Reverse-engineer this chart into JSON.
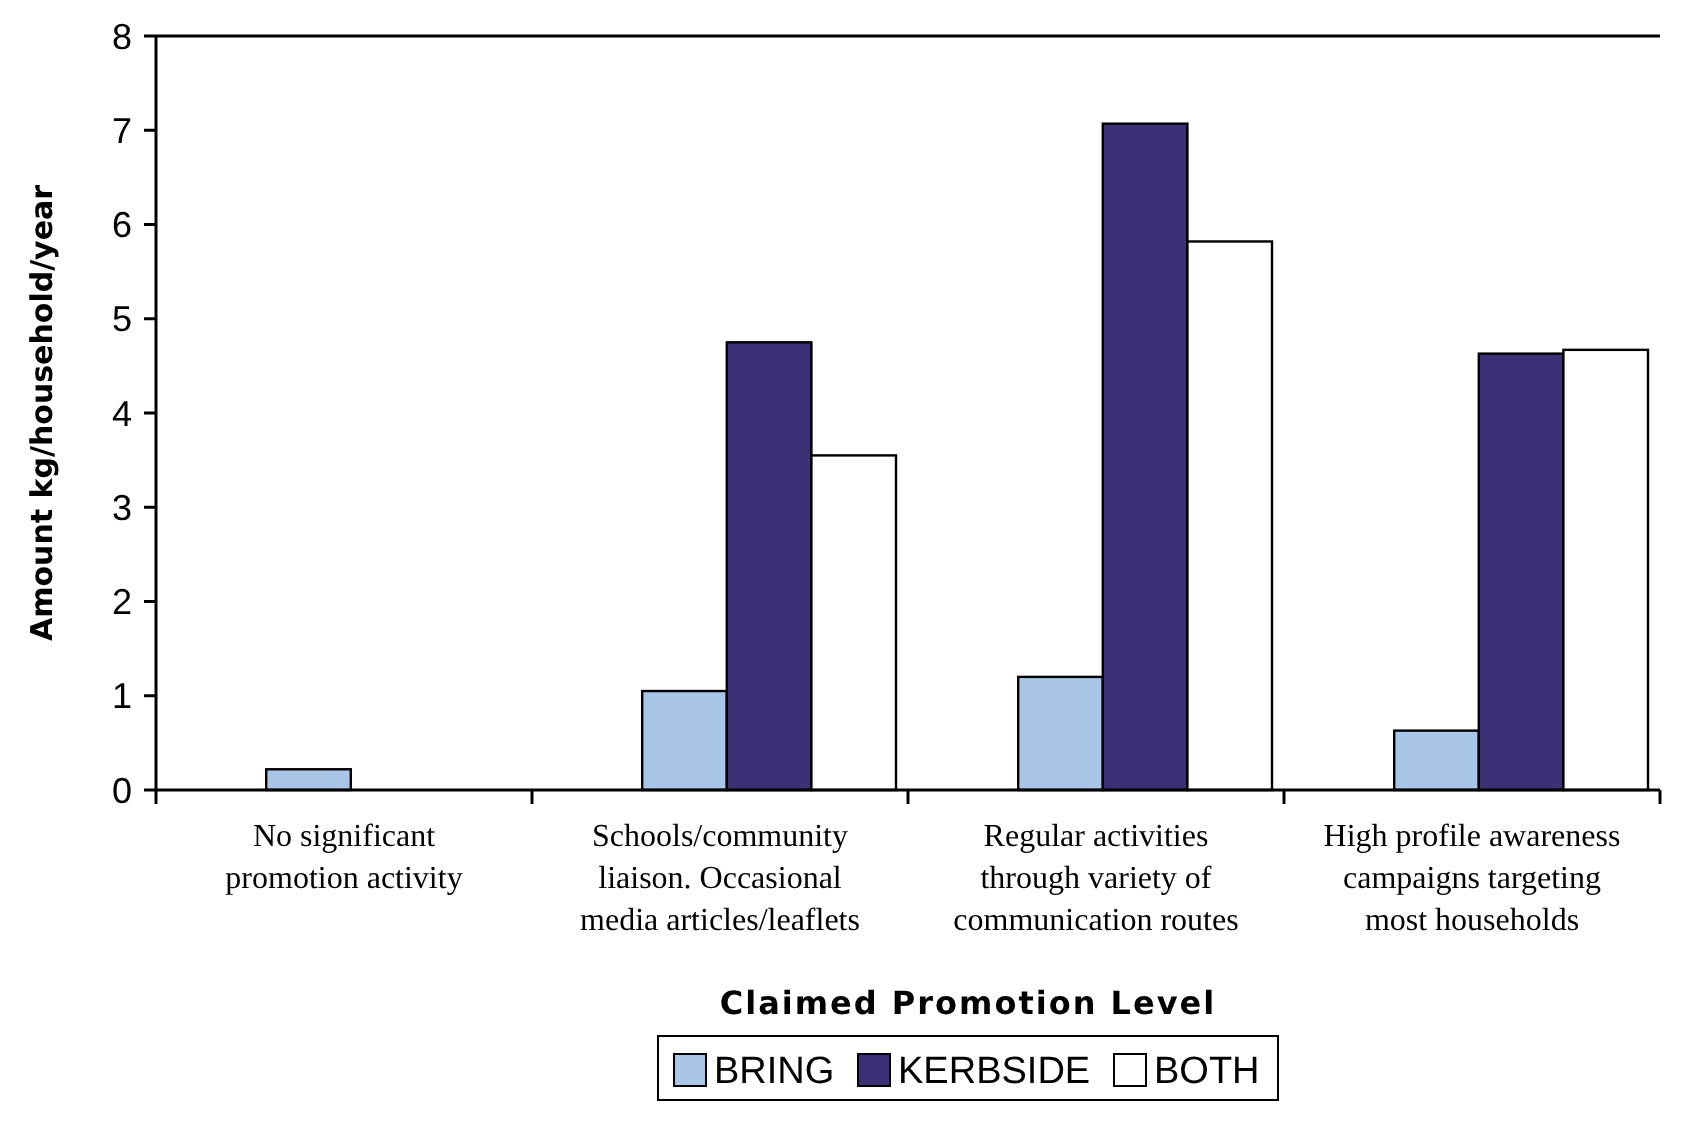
{
  "chart_data": {
    "type": "bar",
    "xlabel": "Claimed Promotion Level",
    "ylabel": "Amount kg/household/year",
    "categories": [
      "No significant promotion activity",
      "Schools/community liaison. Occasional media articles/leaflets",
      "Regular activities through variety of communication routes",
      "High profile awareness campaigns targeting most households"
    ],
    "series": [
      {
        "name": "BRING",
        "color": "#a9c6e8",
        "values": [
          0.22,
          1.05,
          1.2,
          0.63
        ]
      },
      {
        "name": "KERBSIDE",
        "color": "#3b3176",
        "values": [
          null,
          4.75,
          7.07,
          4.63
        ]
      },
      {
        "name": "BOTH",
        "color": "#ffffff",
        "values": [
          null,
          3.55,
          5.82,
          4.67
        ]
      }
    ],
    "ylim": [
      0,
      8
    ],
    "yticks": [
      0,
      1,
      2,
      3,
      4,
      5,
      6,
      7,
      8
    ],
    "grid": false,
    "legend": "bottom"
  }
}
